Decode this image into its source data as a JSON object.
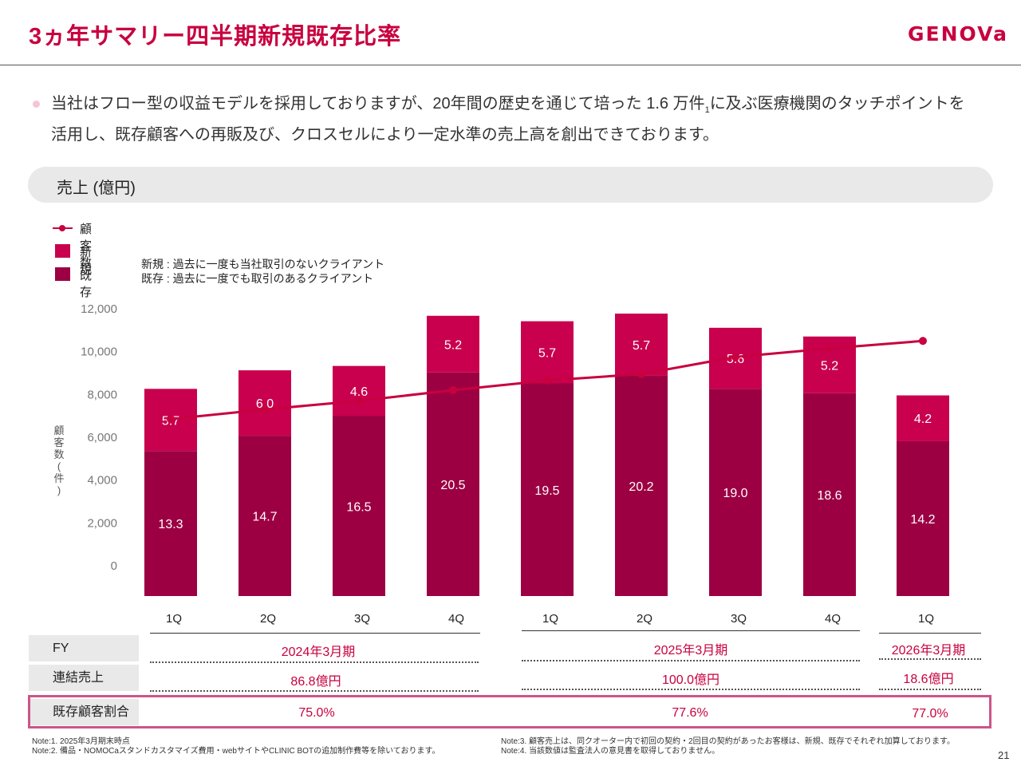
{
  "header": {
    "title": "3ヵ年サマリー四半期新規既存比率",
    "logo": "GENOVa"
  },
  "intro": {
    "text_before": "当社はフロー型の収益モデルを採用しておりますが、20年間の歴史を通じて培った 1.6 万件",
    "footnote_mark": "1",
    "text_after": "に及ぶ医療機関のタッチポイントを活用し、既存顧客への再販及び、クロスセルにより一定水準の売上高を創出できております。"
  },
  "section": {
    "label": "売上 (億円)"
  },
  "legend": {
    "customers": "顧客数",
    "new": "新規",
    "existing": "既存"
  },
  "definitions": {
    "new": "新規 : 過去に一度も当社取引のないクライアント",
    "existing": "既存 : 過去に一度でも取引のあるクライアント"
  },
  "colors": {
    "accent": "#c8003f",
    "new": "#c8004e",
    "existing": "#9c0043",
    "line": "#c8003f"
  },
  "chart_data": {
    "type": "bar",
    "stacked": true,
    "categories": [
      "1Q",
      "2Q",
      "3Q",
      "4Q",
      "1Q",
      "2Q",
      "3Q",
      "4Q",
      "1Q"
    ],
    "series": [
      {
        "name": "既存",
        "values": [
          13.3,
          14.7,
          16.5,
          20.5,
          19.5,
          20.2,
          19.0,
          18.6,
          14.2
        ]
      },
      {
        "name": "新規",
        "values": [
          5.7,
          6.0,
          4.6,
          5.2,
          5.7,
          5.7,
          5.6,
          5.2,
          4.2
        ]
      },
      {
        "name": "顧客数",
        "type": "line",
        "axis": "left",
        "values": [
          6850,
          7300,
          7700,
          8200,
          8650,
          8950,
          9750,
          10150,
          10500
        ]
      }
    ],
    "ylabel": "顧客数(件)",
    "yticks": [
      "12,000",
      "10,000",
      "8,000",
      "6,000",
      "4,000",
      "2,000",
      "0"
    ],
    "ylim": [
      0,
      12000
    ],
    "bar_scale_max": 30
  },
  "table": {
    "fy_label": "FY",
    "sales_label": "連結売上",
    "ratio_label": "既存顧客割合",
    "periods": [
      {
        "fy": "2024年3月期",
        "sales": "86.8億円",
        "ratio": "75.0%"
      },
      {
        "fy": "2025年3月期",
        "sales": "100.0億円",
        "ratio": "77.6%"
      },
      {
        "fy": "2026年3月期",
        "sales": "18.6億円",
        "ratio": "77.0%"
      }
    ]
  },
  "notes": {
    "left": [
      "Note:1. 2025年3月期末時点",
      "Note:2. 備品・NOMOCaスタンドカスタマイズ費用・webサイトやCLINIC BOTの追加制作費等を除いております。"
    ],
    "right": [
      "Note:3. 顧客売上は、同クオーター内で初回の契約・2回目の契約があったお客様は、新規、既存でそれぞれ加算しております。",
      "Note:4. 当該数値は監査法人の意見書を取得しておりません。"
    ]
  },
  "page_number": "21"
}
